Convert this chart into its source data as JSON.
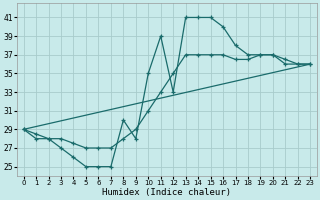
{
  "xlabel": "Humidex (Indice chaleur)",
  "bg_color": "#c8eaea",
  "grid_color": "#a8cccc",
  "line_color": "#1a6b6b",
  "xlim": [
    -0.5,
    23.5
  ],
  "ylim": [
    24.0,
    42.5
  ],
  "xticks": [
    0,
    1,
    2,
    3,
    4,
    5,
    6,
    7,
    8,
    9,
    10,
    11,
    12,
    13,
    14,
    15,
    16,
    17,
    18,
    19,
    20,
    21,
    22,
    23
  ],
  "yticks": [
    25,
    27,
    29,
    31,
    33,
    35,
    37,
    39,
    41
  ],
  "curve1_x": [
    0,
    1,
    2,
    3,
    4,
    5,
    6,
    7,
    8,
    9,
    10,
    11,
    12,
    13,
    14,
    15,
    16,
    17,
    18,
    19,
    20,
    21,
    22,
    23
  ],
  "curve1_y": [
    29,
    28,
    28,
    27,
    26,
    25,
    25,
    25,
    30,
    28,
    35,
    39,
    33,
    41,
    41,
    41,
    40,
    38,
    37,
    37,
    37,
    36,
    36,
    36
  ],
  "curve2_x": [
    0,
    1,
    2,
    3,
    4,
    5,
    6,
    7,
    8,
    9,
    10,
    11,
    12,
    13,
    14,
    15,
    16,
    17,
    18,
    19,
    20,
    21,
    22,
    23
  ],
  "curve2_y": [
    29,
    28.5,
    28,
    28,
    27.5,
    27,
    27,
    27,
    28,
    29,
    31,
    33,
    35,
    37,
    37,
    37,
    37,
    36.5,
    36.5,
    37,
    37,
    36.5,
    36,
    36
  ],
  "line_x": [
    0,
    23
  ],
  "line_y": [
    29,
    36
  ]
}
